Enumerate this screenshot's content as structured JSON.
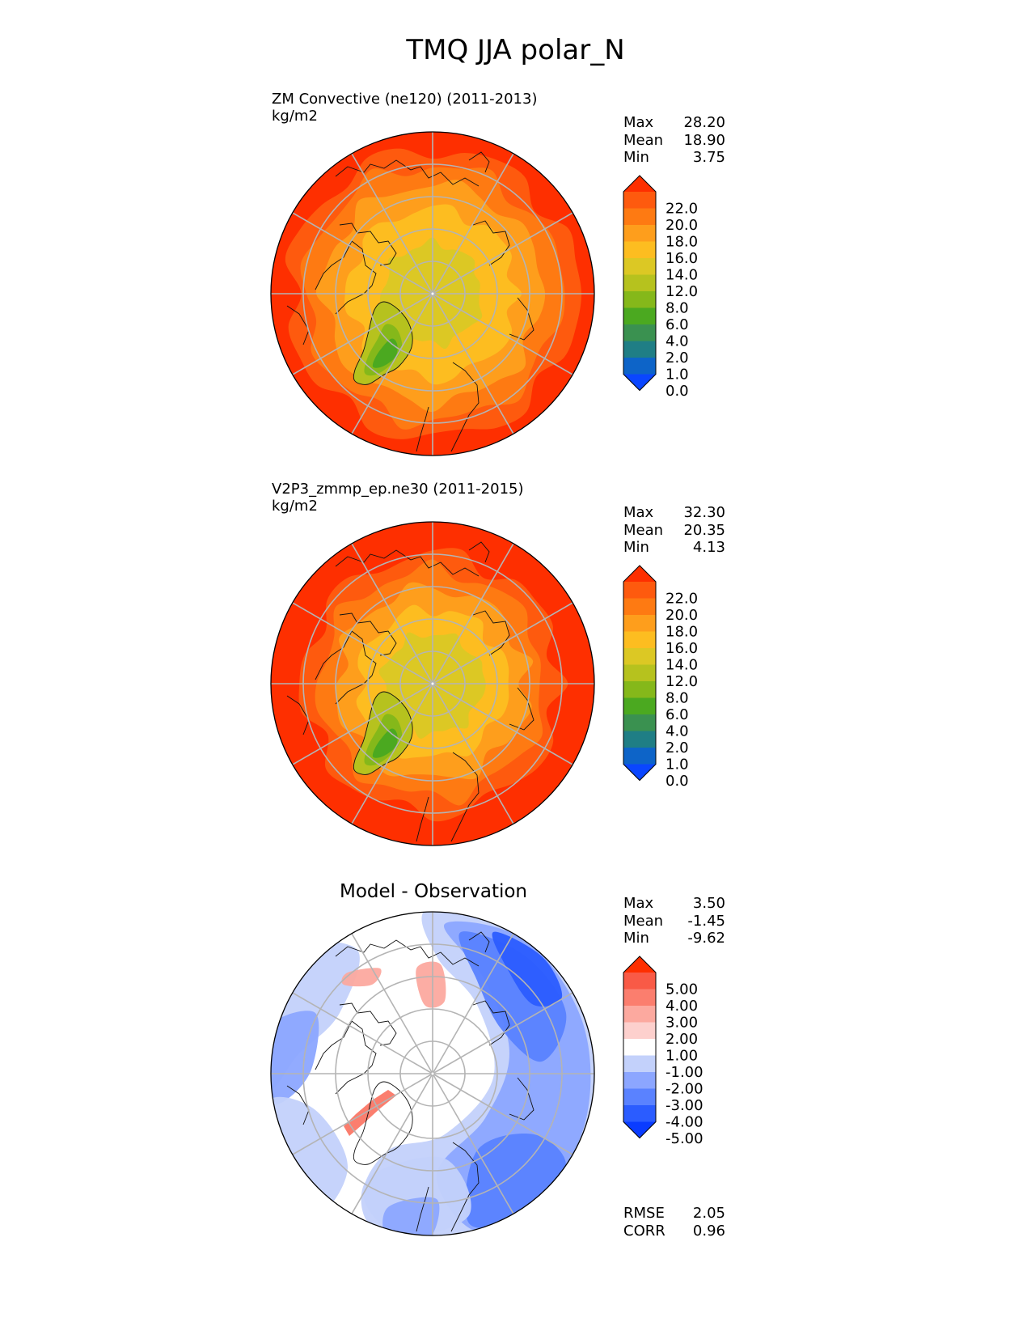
{
  "title": "TMQ JJA polar_N",
  "panels": [
    {
      "id": "test",
      "title": "ZM Convective (ne120) (2011-2013)",
      "units": "kg/m2",
      "stats": [
        {
          "label": "Max",
          "value": "28.20"
        },
        {
          "label": "Mean",
          "value": "18.90"
        },
        {
          "label": "Min",
          "value": "3.75"
        }
      ]
    },
    {
      "id": "ref",
      "title": "V2P3_zmmp_ep.ne30 (2011-2015)",
      "units": "kg/m2",
      "stats": [
        {
          "label": "Max",
          "value": "32.30"
        },
        {
          "label": "Mean",
          "value": "20.35"
        },
        {
          "label": "Min",
          "value": "4.13"
        }
      ]
    },
    {
      "id": "diff",
      "title": "Model - Observation",
      "units": "",
      "stats": [
        {
          "label": "Max",
          "value": "3.50"
        },
        {
          "label": "Mean",
          "value": "-1.45"
        },
        {
          "label": "Min",
          "value": "-9.62"
        }
      ],
      "extra_stats": [
        {
          "label": "RMSE",
          "value": "2.05"
        },
        {
          "label": "CORR",
          "value": "0.96"
        }
      ]
    }
  ],
  "chart_data": [
    {
      "type": "heatmap",
      "projection": "north-polar-stereographic",
      "title": "ZM Convective (ne120) (2011-2013)",
      "units": "kg/m2",
      "colorbar": {
        "levels": [
          "0.0",
          "1.0",
          "2.0",
          "4.0",
          "6.0",
          "8.0",
          "12.0",
          "14.0",
          "16.0",
          "18.0",
          "20.0",
          "22.0"
        ],
        "colors": [
          "#0a46ff",
          "#0d64c8",
          "#1f7e85",
          "#3a9150",
          "#4ba920",
          "#85b81a",
          "#b6c21e",
          "#dcc824",
          "#fdbd20",
          "#fe9e1c",
          "#fe7a12",
          "#fe5a0e",
          "#fe2f00"
        ],
        "extend": "both"
      }
    },
    {
      "type": "heatmap",
      "projection": "north-polar-stereographic",
      "title": "V2P3_zmmp_ep.ne30 (2011-2015)",
      "units": "kg/m2",
      "colorbar": {
        "levels": [
          "0.0",
          "1.0",
          "2.0",
          "4.0",
          "6.0",
          "8.0",
          "12.0",
          "14.0",
          "16.0",
          "18.0",
          "20.0",
          "22.0"
        ],
        "colors": [
          "#0a46ff",
          "#0d64c8",
          "#1f7e85",
          "#3a9150",
          "#4ba920",
          "#85b81a",
          "#b6c21e",
          "#dcc824",
          "#fdbd20",
          "#fe9e1c",
          "#fe7a12",
          "#fe5a0e",
          "#fe2f00"
        ],
        "extend": "both"
      }
    },
    {
      "type": "heatmap",
      "projection": "north-polar-stereographic",
      "title": "Model - Observation",
      "colorbar": {
        "levels": [
          "-5.00",
          "-4.00",
          "-3.00",
          "-2.00",
          "-1.00",
          "1.00",
          "2.00",
          "3.00",
          "4.00",
          "5.00"
        ],
        "colors": [
          "#0a3cff",
          "#2b5cff",
          "#5a82ff",
          "#8ca6ff",
          "#c3d1fb",
          "#ffffff",
          "#fdd0cd",
          "#fca99f",
          "#fb7e6e",
          "#f95a46",
          "#fe2f00"
        ],
        "extend": "both"
      }
    }
  ]
}
